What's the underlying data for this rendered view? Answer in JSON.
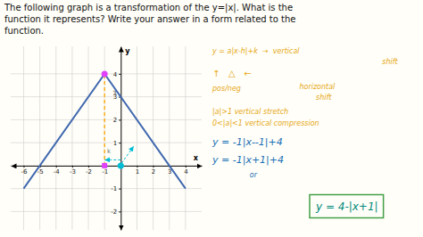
{
  "chart_data": {
    "type": "line",
    "title": [
      "The following graph is a transformation of the y=|x|. What is the",
      "function it represents? Write your answer in a form related to the",
      "function."
    ],
    "title_color": "#111111",
    "background_color": "#fffef8",
    "x_label": "x",
    "y_label": "y",
    "x": [
      -6,
      -1,
      4
    ],
    "values": [
      -1,
      4,
      -1
    ],
    "color": "#4169b0",
    "xlim": [
      -6.8,
      5.0
    ],
    "ylim": [
      -2.8,
      5.2
    ],
    "xticks": [
      -6,
      -5,
      -4,
      -3,
      -2,
      -1,
      1,
      2,
      3,
      4
    ],
    "yticks": [
      -2,
      -1,
      1,
      2,
      3,
      4
    ],
    "grid": true,
    "grid_color": "#cccccc",
    "points": [
      {
        "x": -1,
        "y": 4,
        "color": "#e040fb",
        "marker": "circle"
      },
      {
        "x": 0,
        "y": 0,
        "color": "#00bcd4",
        "marker": "circle"
      },
      {
        "x": -1,
        "y": 0,
        "color": "#e040fb",
        "marker": "square"
      }
    ],
    "reference_lines": [
      {
        "x": -1,
        "y": [
          0,
          4
        ],
        "color": "#FFA500",
        "line_style": "dashed"
      }
    ],
    "arrows": [
      {
        "x": [
          0,
          -1
        ],
        "y": [
          0.25,
          0.25
        ],
        "color": "#00bcd4",
        "line_style": "dashed"
      },
      {
        "x": [
          0.05,
          0.8
        ],
        "y": [
          0.1,
          0.85
        ],
        "color": "#00bcd4",
        "line_style": "dashed"
      }
    ],
    "annotations": [
      {
        "text": "3",
        "x": -0.5,
        "y": 3.05,
        "color": "#444444"
      },
      {
        "text": "k",
        "x": -0.85,
        "y": 0.55,
        "color": "#777777"
      }
    ],
    "notes": [
      {
        "text": "y = a|x-h|+k  →  vertical",
        "color": "#E6A817"
      },
      {
        "text": "shift",
        "color": "#E6A817"
      },
      {
        "text": "↑   △   ←",
        "color": "#E6A817"
      },
      {
        "text": "pos/neg",
        "color": "#E6A817"
      },
      {
        "text": "horizontal",
        "color": "#E6A817"
      },
      {
        "text": "shift",
        "color": "#E6A817"
      },
      {
        "text": "|a|>1 vertical stretch",
        "color": "#E6A817"
      },
      {
        "text": "0<|a|<1 vertical compression",
        "color": "#E6A817"
      },
      {
        "text": "y = -1|x--1|+4",
        "color": "#1a6fb5"
      },
      {
        "text": "y = -1|x+1|+4",
        "color": "#1a6fb5"
      },
      {
        "text": "or",
        "color": "#1a6fb5"
      },
      {
        "text": "y = 4-|x+1|",
        "color": "#00897B",
        "box_color": "#43A047"
      }
    ]
  }
}
